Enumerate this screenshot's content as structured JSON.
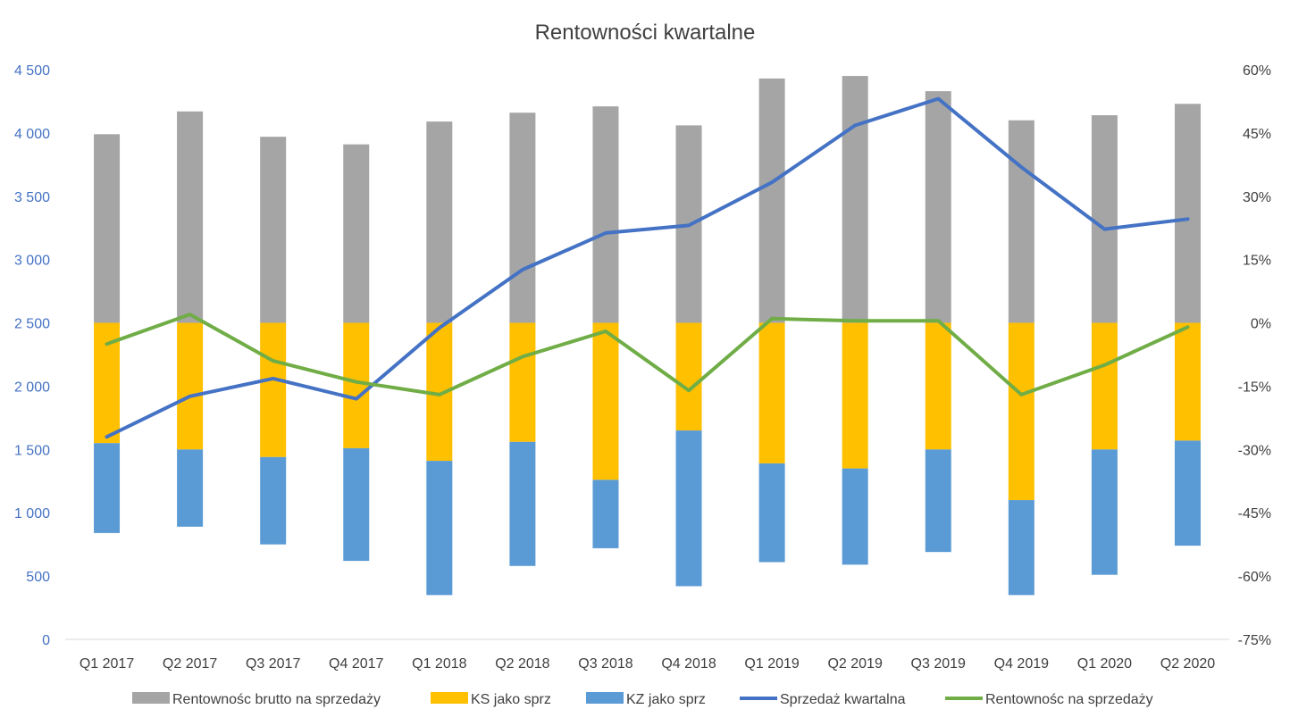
{
  "chart_data": {
    "type": "bar",
    "title": "Rentowności kwartalne",
    "categories": [
      "Q1 2017",
      "Q2 2017",
      "Q3 2017",
      "Q4 2017",
      "Q1 2018",
      "Q2 2018",
      "Q3 2018",
      "Q4 2018",
      "Q1 2019",
      "Q2 2019",
      "Q3 2019",
      "Q4 2019",
      "Q1 2020",
      "Q2 2020"
    ],
    "ylim_left": [
      0,
      4500
    ],
    "ylim_right": [
      -0.75,
      0.6
    ],
    "y_ticks_left": [
      "0",
      "500",
      "1 000",
      "1 500",
      "2 000",
      "2 500",
      "3 000",
      "3 500",
      "4 000",
      "4 500"
    ],
    "y_ticks_right": [
      "-75%",
      "-60%",
      "-45%",
      "-30%",
      "-15%",
      "0%",
      "15%",
      "30%",
      "45%",
      "60%"
    ],
    "grid": false,
    "legend_position": "bottom",
    "colors": {
      "gross": "#a5a5a5",
      "ks": "#ffc000",
      "kz": "#5b9bd5",
      "sales": "#4472c4",
      "ros": "#70ad47",
      "left_axis": "#4472c4"
    },
    "bar_series": [
      {
        "name": "Rentownośc brutto na sprzedaży",
        "key": "gross",
        "low": [
          2500,
          2500,
          2500,
          2500,
          2500,
          2500,
          2500,
          2500,
          2500,
          2500,
          2500,
          2500,
          2500,
          2500
        ],
        "high": [
          3990,
          4170,
          3970,
          3910,
          4090,
          4160,
          4210,
          4060,
          4430,
          4450,
          4330,
          4100,
          4140,
          4230
        ]
      },
      {
        "name": "KS jako sprz",
        "key": "ks",
        "low": [
          1550,
          1500,
          1440,
          1510,
          1410,
          1560,
          1260,
          1650,
          1390,
          1350,
          1500,
          1100,
          1500,
          1570
        ],
        "high": [
          2500,
          2500,
          2500,
          2500,
          2500,
          2500,
          2500,
          2500,
          2500,
          2500,
          2500,
          2500,
          2500,
          2500
        ]
      },
      {
        "name": "KZ jako sprz",
        "key": "kz",
        "low": [
          840,
          890,
          750,
          620,
          350,
          580,
          720,
          420,
          610,
          590,
          690,
          350,
          510,
          740
        ],
        "high": [
          1550,
          1500,
          1440,
          1510,
          1410,
          1560,
          1260,
          1650,
          1390,
          1350,
          1500,
          1100,
          1500,
          1570
        ]
      }
    ],
    "line_series": [
      {
        "name": "Sprzedaż kwartalna",
        "key": "sales",
        "axis": "left",
        "values": [
          1600,
          1920,
          2060,
          1900,
          2460,
          2920,
          3210,
          3270,
          3610,
          4060,
          4270,
          3730,
          3240,
          3320
        ]
      },
      {
        "name": "Rentownośc na sprzedaży",
        "key": "ros",
        "axis": "right",
        "values": [
          -0.05,
          0.02,
          -0.09,
          -0.14,
          -0.17,
          -0.08,
          -0.02,
          -0.16,
          0.01,
          0.005,
          0.005,
          -0.17,
          -0.1,
          -0.01
        ]
      }
    ],
    "legend_order": [
      "gross",
      "ks",
      "kz",
      "sales",
      "ros"
    ]
  }
}
